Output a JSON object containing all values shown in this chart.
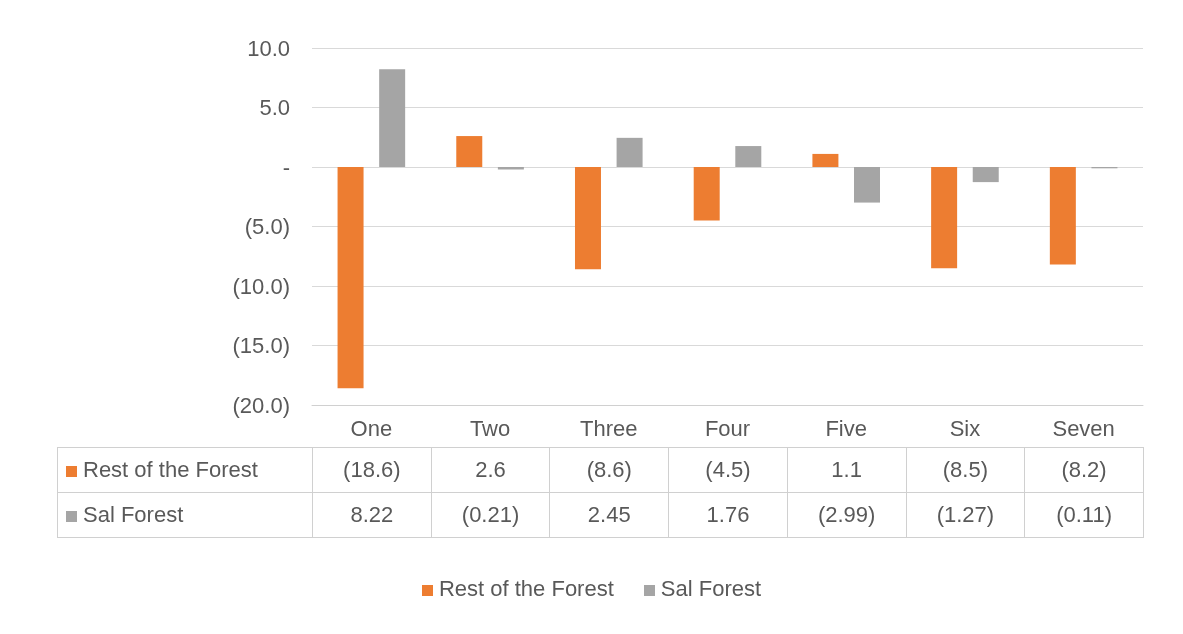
{
  "chart_data": {
    "type": "bar",
    "categories": [
      "One",
      "Two",
      "Three",
      "Four",
      "Five",
      "Six",
      "Seven"
    ],
    "series": [
      {
        "name": "Rest of the Forest",
        "color": "#ed7d31",
        "values": [
          -18.6,
          2.6,
          -8.6,
          -4.5,
          1.1,
          -8.5,
          -8.2
        ],
        "value_labels": [
          "(18.6)",
          "2.6",
          "(8.6)",
          "(4.5)",
          "1.1",
          "(8.5)",
          "(8.2)"
        ]
      },
      {
        "name": "Sal Forest",
        "color": "#a5a5a5",
        "values": [
          8.22,
          -0.21,
          2.45,
          1.76,
          -2.99,
          -1.27,
          -0.11
        ],
        "value_labels": [
          "8.22",
          "(0.21)",
          "2.45",
          "1.76",
          "(2.99)",
          "(1.27)",
          "(0.11)"
        ]
      }
    ],
    "ylim": [
      -20,
      10
    ],
    "yticks": [
      {
        "value": 10,
        "label": "10.0"
      },
      {
        "value": 5,
        "label": "5.0"
      },
      {
        "value": 0,
        "label": "-"
      },
      {
        "value": -5,
        "label": "(5.0)"
      },
      {
        "value": -10,
        "label": "(10.0)"
      },
      {
        "value": -15,
        "label": "(15.0)"
      },
      {
        "value": -20,
        "label": "(20.0)"
      }
    ],
    "grid": "y",
    "legend": "bottom"
  }
}
